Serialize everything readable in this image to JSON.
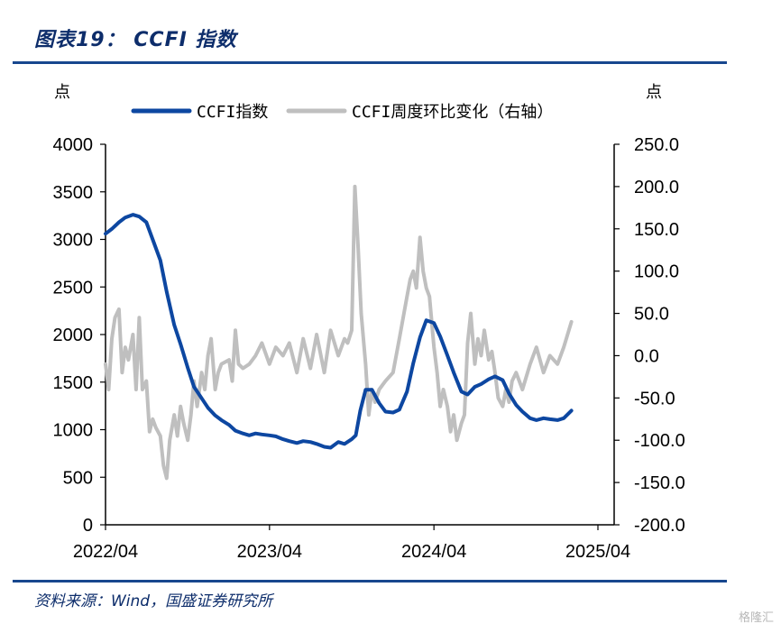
{
  "header": {
    "title": "图表19：  CCFI 指数"
  },
  "footer": {
    "source": "资料来源：Wind，国盛证券研究所",
    "watermark": "格隆汇"
  },
  "chart_data": {
    "type": "line",
    "title": "图表19：  CCFI 指数",
    "y_left_unit": "点",
    "y_right_unit": "点",
    "y_left_ticks": [
      "0",
      "500",
      "1000",
      "1500",
      "2000",
      "2500",
      "3000",
      "3500",
      "4000"
    ],
    "y_right_ticks": [
      "-200.0",
      "-150.0",
      "-100.0",
      "-50.0",
      "0.0",
      "50.0",
      "100.0",
      "150.0",
      "200.0",
      "250.0"
    ],
    "x_ticks": [
      "2022/04",
      "2023/04",
      "2024/04",
      "2025/04"
    ],
    "y_left_range": [
      0,
      4000
    ],
    "y_right_range": [
      -200,
      250
    ],
    "legend_position": "top",
    "series": [
      {
        "name": "CCFI指数",
        "color": "#0d47a1",
        "axis": "left",
        "points": [
          [
            "2022-04-01",
            3060
          ],
          [
            "2022-04-15",
            3110
          ],
          [
            "2022-05-01",
            3180
          ],
          [
            "2022-05-15",
            3230
          ],
          [
            "2022-06-01",
            3260
          ],
          [
            "2022-06-15",
            3240
          ],
          [
            "2022-07-01",
            3180
          ],
          [
            "2022-07-15",
            3000
          ],
          [
            "2022-08-01",
            2780
          ],
          [
            "2022-08-15",
            2450
          ],
          [
            "2022-09-01",
            2100
          ],
          [
            "2022-09-15",
            1900
          ],
          [
            "2022-10-01",
            1650
          ],
          [
            "2022-10-15",
            1450
          ],
          [
            "2022-11-01",
            1330
          ],
          [
            "2022-11-15",
            1230
          ],
          [
            "2022-12-01",
            1150
          ],
          [
            "2022-12-15",
            1100
          ],
          [
            "2023-01-01",
            1050
          ],
          [
            "2023-01-15",
            990
          ],
          [
            "2023-02-01",
            960
          ],
          [
            "2023-02-15",
            940
          ],
          [
            "2023-03-01",
            960
          ],
          [
            "2023-03-15",
            950
          ],
          [
            "2023-04-01",
            940
          ],
          [
            "2023-04-15",
            930
          ],
          [
            "2023-05-01",
            900
          ],
          [
            "2023-05-15",
            880
          ],
          [
            "2023-06-01",
            860
          ],
          [
            "2023-06-15",
            880
          ],
          [
            "2023-07-01",
            870
          ],
          [
            "2023-07-15",
            850
          ],
          [
            "2023-08-01",
            820
          ],
          [
            "2023-08-15",
            810
          ],
          [
            "2023-09-01",
            870
          ],
          [
            "2023-09-15",
            850
          ],
          [
            "2023-10-01",
            900
          ],
          [
            "2023-10-10",
            940
          ],
          [
            "2023-10-20",
            1200
          ],
          [
            "2023-11-01",
            1420
          ],
          [
            "2023-11-15",
            1420
          ],
          [
            "2023-12-01",
            1280
          ],
          [
            "2023-12-15",
            1190
          ],
          [
            "2024-01-01",
            1180
          ],
          [
            "2024-01-15",
            1210
          ],
          [
            "2024-02-01",
            1400
          ],
          [
            "2024-02-15",
            1700
          ],
          [
            "2024-03-01",
            1970
          ],
          [
            "2024-03-15",
            2150
          ],
          [
            "2024-04-01",
            2120
          ],
          [
            "2024-04-15",
            1980
          ],
          [
            "2024-05-01",
            1780
          ],
          [
            "2024-05-15",
            1600
          ],
          [
            "2024-06-01",
            1400
          ],
          [
            "2024-06-15",
            1370
          ],
          [
            "2024-07-01",
            1450
          ],
          [
            "2024-07-15",
            1480
          ],
          [
            "2024-08-01",
            1530
          ],
          [
            "2024-08-15",
            1560
          ],
          [
            "2024-09-01",
            1520
          ],
          [
            "2024-09-15",
            1380
          ],
          [
            "2024-10-01",
            1260
          ],
          [
            "2024-10-15",
            1190
          ],
          [
            "2024-11-01",
            1120
          ],
          [
            "2024-11-15",
            1100
          ],
          [
            "2024-12-01",
            1120
          ],
          [
            "2024-12-15",
            1110
          ],
          [
            "2025-01-01",
            1100
          ],
          [
            "2025-01-15",
            1120
          ],
          [
            "2025-02-01",
            1200
          ]
        ]
      },
      {
        "name": "CCFI周度环比变化（右轴）",
        "color": "#bfbfbf",
        "axis": "right",
        "points": [
          [
            "2022-04-01",
            -10
          ],
          [
            "2022-04-08",
            -40
          ],
          [
            "2022-04-15",
            20
          ],
          [
            "2022-04-22",
            45
          ],
          [
            "2022-05-01",
            55
          ],
          [
            "2022-05-08",
            -20
          ],
          [
            "2022-05-15",
            10
          ],
          [
            "2022-05-22",
            -5
          ],
          [
            "2022-06-01",
            25
          ],
          [
            "2022-06-08",
            -40
          ],
          [
            "2022-06-15",
            45
          ],
          [
            "2022-06-22",
            -40
          ],
          [
            "2022-07-01",
            -30
          ],
          [
            "2022-07-08",
            -90
          ],
          [
            "2022-07-15",
            -75
          ],
          [
            "2022-07-22",
            -85
          ],
          [
            "2022-08-01",
            -95
          ],
          [
            "2022-08-08",
            -130
          ],
          [
            "2022-08-15",
            -145
          ],
          [
            "2022-08-22",
            -100
          ],
          [
            "2022-09-01",
            -70
          ],
          [
            "2022-09-08",
            -95
          ],
          [
            "2022-09-15",
            -60
          ],
          [
            "2022-09-22",
            -80
          ],
          [
            "2022-10-01",
            -100
          ],
          [
            "2022-10-08",
            -70
          ],
          [
            "2022-10-15",
            -30
          ],
          [
            "2022-10-22",
            -60
          ],
          [
            "2022-11-01",
            -20
          ],
          [
            "2022-11-08",
            -40
          ],
          [
            "2022-11-15",
            0
          ],
          [
            "2022-11-22",
            20
          ],
          [
            "2022-12-01",
            -40
          ],
          [
            "2022-12-08",
            -20
          ],
          [
            "2022-12-15",
            -10
          ],
          [
            "2023-01-01",
            -5
          ],
          [
            "2023-01-08",
            -30
          ],
          [
            "2023-01-15",
            30
          ],
          [
            "2023-01-22",
            -10
          ],
          [
            "2023-02-01",
            -15
          ],
          [
            "2023-02-15",
            -10
          ],
          [
            "2023-03-01",
            0
          ],
          [
            "2023-03-15",
            15
          ],
          [
            "2023-04-01",
            -10
          ],
          [
            "2023-04-15",
            10
          ],
          [
            "2023-05-01",
            0
          ],
          [
            "2023-05-15",
            15
          ],
          [
            "2023-06-01",
            -20
          ],
          [
            "2023-06-15",
            20
          ],
          [
            "2023-07-01",
            -15
          ],
          [
            "2023-07-15",
            25
          ],
          [
            "2023-08-01",
            -20
          ],
          [
            "2023-08-15",
            30
          ],
          [
            "2023-09-01",
            0
          ],
          [
            "2023-09-15",
            20
          ],
          [
            "2023-09-22",
            15
          ],
          [
            "2023-10-01",
            30
          ],
          [
            "2023-10-08",
            200
          ],
          [
            "2023-10-15",
            130
          ],
          [
            "2023-10-22",
            50
          ],
          [
            "2023-11-01",
            -10
          ],
          [
            "2023-11-08",
            -70
          ],
          [
            "2023-11-15",
            -40
          ],
          [
            "2023-11-22",
            -55
          ],
          [
            "2023-12-01",
            -40
          ],
          [
            "2023-12-15",
            -30
          ],
          [
            "2024-01-01",
            -20
          ],
          [
            "2024-01-15",
            20
          ],
          [
            "2024-02-01",
            70
          ],
          [
            "2024-02-08",
            90
          ],
          [
            "2024-02-15",
            100
          ],
          [
            "2024-02-22",
            80
          ],
          [
            "2024-03-01",
            140
          ],
          [
            "2024-03-08",
            100
          ],
          [
            "2024-03-15",
            80
          ],
          [
            "2024-03-22",
            70
          ],
          [
            "2024-04-01",
            10
          ],
          [
            "2024-04-08",
            -20
          ],
          [
            "2024-04-15",
            -60
          ],
          [
            "2024-04-22",
            -40
          ],
          [
            "2024-05-01",
            -60
          ],
          [
            "2024-05-08",
            -90
          ],
          [
            "2024-05-15",
            -70
          ],
          [
            "2024-05-22",
            -100
          ],
          [
            "2024-06-01",
            -80
          ],
          [
            "2024-06-08",
            -70
          ],
          [
            "2024-06-15",
            15
          ],
          [
            "2024-06-22",
            50
          ],
          [
            "2024-07-01",
            -10
          ],
          [
            "2024-07-08",
            20
          ],
          [
            "2024-07-15",
            0
          ],
          [
            "2024-07-22",
            30
          ],
          [
            "2024-08-01",
            -5
          ],
          [
            "2024-08-08",
            5
          ],
          [
            "2024-08-15",
            -20
          ],
          [
            "2024-08-22",
            -50
          ],
          [
            "2024-09-01",
            -60
          ],
          [
            "2024-09-08",
            -40
          ],
          [
            "2024-09-15",
            -55
          ],
          [
            "2024-09-22",
            -30
          ],
          [
            "2024-10-01",
            -20
          ],
          [
            "2024-10-15",
            -40
          ],
          [
            "2024-11-01",
            -10
          ],
          [
            "2024-11-15",
            10
          ],
          [
            "2024-12-01",
            -20
          ],
          [
            "2024-12-15",
            0
          ],
          [
            "2025-01-01",
            -10
          ],
          [
            "2025-01-15",
            10
          ],
          [
            "2025-02-01",
            40
          ]
        ]
      }
    ]
  }
}
